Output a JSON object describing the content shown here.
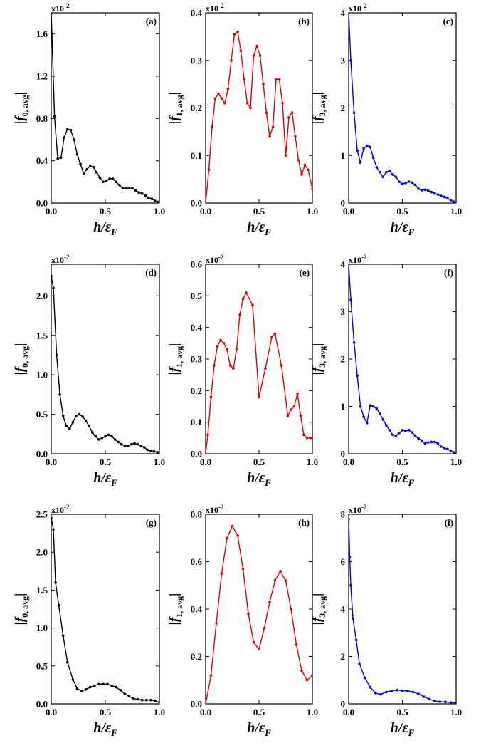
{
  "figure": {
    "xlabel_main": "h/ε",
    "xlabel_sub": "F",
    "scale_base": "x10",
    "scale_exp": "-2",
    "xticks": [
      "0.0",
      "0.5",
      "1.0"
    ]
  },
  "chart_data": [
    {
      "type": "line",
      "panel": "(a)",
      "color": "#000000",
      "ylabel_main": "|f",
      "ylabel_sub": "0, avg",
      "ylabel_end": "|",
      "xlim": [
        0,
        1
      ],
      "ylim": [
        0,
        1.8
      ],
      "yticks": [
        "0.0",
        "0.4",
        "0.8",
        "1.2",
        "1.6"
      ],
      "x": [
        0.0,
        0.03,
        0.06,
        0.09,
        0.12,
        0.15,
        0.18,
        0.21,
        0.24,
        0.27,
        0.3,
        0.33,
        0.36,
        0.39,
        0.42,
        0.45,
        0.48,
        0.51,
        0.54,
        0.57,
        0.6,
        0.63,
        0.66,
        0.69,
        0.72,
        0.75,
        0.78,
        0.81,
        0.84,
        0.87,
        0.9,
        0.93,
        0.96,
        0.99
      ],
      "y": [
        1.8,
        0.82,
        0.42,
        0.43,
        0.62,
        0.7,
        0.69,
        0.6,
        0.46,
        0.37,
        0.28,
        0.32,
        0.35,
        0.34,
        0.29,
        0.24,
        0.2,
        0.21,
        0.23,
        0.23,
        0.2,
        0.17,
        0.14,
        0.14,
        0.14,
        0.14,
        0.12,
        0.1,
        0.09,
        0.07,
        0.05,
        0.04,
        0.02,
        0.01
      ]
    },
    {
      "type": "line",
      "panel": "(b)",
      "color": "#e00000",
      "ylabel_main": "|f",
      "ylabel_sub": "1, avg",
      "ylabel_end": "|",
      "xlim": [
        0,
        1
      ],
      "ylim": [
        0,
        0.4
      ],
      "yticks": [
        "0.0",
        "0.1",
        "0.2",
        "0.3",
        "0.4"
      ],
      "x": [
        0.0,
        0.03,
        0.06,
        0.09,
        0.12,
        0.15,
        0.18,
        0.21,
        0.24,
        0.27,
        0.3,
        0.33,
        0.36,
        0.39,
        0.42,
        0.45,
        0.48,
        0.51,
        0.54,
        0.57,
        0.6,
        0.63,
        0.66,
        0.69,
        0.72,
        0.75,
        0.78,
        0.81,
        0.84,
        0.87,
        0.9,
        0.93,
        0.96,
        1.0
      ],
      "y": [
        0.0,
        0.07,
        0.16,
        0.22,
        0.23,
        0.22,
        0.21,
        0.24,
        0.3,
        0.355,
        0.36,
        0.32,
        0.26,
        0.21,
        0.2,
        0.31,
        0.33,
        0.31,
        0.25,
        0.19,
        0.14,
        0.16,
        0.26,
        0.26,
        0.21,
        0.1,
        0.18,
        0.19,
        0.14,
        0.09,
        0.06,
        0.08,
        0.07,
        0.03
      ]
    },
    {
      "type": "line",
      "panel": "(c)",
      "color": "#0000dd",
      "ylabel_main": "|f",
      "ylabel_sub": "3, avg",
      "ylabel_end": "|",
      "xlim": [
        0,
        1
      ],
      "ylim": [
        0,
        4
      ],
      "yticks": [
        "0",
        "1",
        "2",
        "3",
        "4"
      ],
      "x": [
        0.0,
        0.02,
        0.05,
        0.08,
        0.11,
        0.14,
        0.17,
        0.2,
        0.23,
        0.26,
        0.29,
        0.32,
        0.35,
        0.38,
        0.41,
        0.44,
        0.47,
        0.5,
        0.53,
        0.56,
        0.59,
        0.62,
        0.65,
        0.68,
        0.71,
        0.74,
        0.77,
        0.8,
        0.83,
        0.86,
        0.89,
        0.92,
        0.95,
        0.98,
        1.0
      ],
      "y": [
        4.0,
        3.0,
        1.9,
        1.1,
        0.85,
        1.15,
        1.2,
        1.18,
        0.95,
        0.75,
        0.65,
        0.55,
        0.65,
        0.68,
        0.6,
        0.55,
        0.45,
        0.4,
        0.42,
        0.45,
        0.43,
        0.38,
        0.3,
        0.27,
        0.28,
        0.26,
        0.23,
        0.2,
        0.18,
        0.15,
        0.13,
        0.1,
        0.06,
        0.03,
        0.01
      ]
    },
    {
      "type": "line",
      "panel": "(d)",
      "color": "#000000",
      "ylabel_main": "|f",
      "ylabel_sub": "0, avg",
      "ylabel_end": "|",
      "xlim": [
        0,
        1
      ],
      "ylim": [
        0,
        2.4
      ],
      "yticks": [
        "0.0",
        "0.5",
        "1.0",
        "1.5",
        "2.0"
      ],
      "x": [
        0.0,
        0.02,
        0.05,
        0.08,
        0.11,
        0.14,
        0.17,
        0.2,
        0.23,
        0.26,
        0.29,
        0.32,
        0.35,
        0.38,
        0.41,
        0.44,
        0.47,
        0.5,
        0.53,
        0.56,
        0.59,
        0.62,
        0.65,
        0.68,
        0.71,
        0.74,
        0.77,
        0.8,
        0.83,
        0.86,
        0.89,
        0.92,
        0.95,
        0.98,
        1.0
      ],
      "y": [
        2.25,
        2.1,
        1.25,
        0.75,
        0.48,
        0.35,
        0.32,
        0.4,
        0.48,
        0.5,
        0.47,
        0.42,
        0.35,
        0.27,
        0.22,
        0.18,
        0.2,
        0.22,
        0.24,
        0.22,
        0.18,
        0.15,
        0.12,
        0.1,
        0.1,
        0.12,
        0.13,
        0.12,
        0.1,
        0.08,
        0.05,
        0.04,
        0.03,
        0.02,
        0.01
      ]
    },
    {
      "type": "line",
      "panel": "(e)",
      "color": "#e00000",
      "ylabel_main": "|f",
      "ylabel_sub": "1, avg",
      "ylabel_end": "|",
      "xlim": [
        0,
        1
      ],
      "ylim": [
        0,
        0.6
      ],
      "yticks": [
        "0.0",
        "0.1",
        "0.2",
        "0.3",
        "0.4",
        "0.5",
        "0.6"
      ],
      "x": [
        0.0,
        0.02,
        0.05,
        0.08,
        0.11,
        0.14,
        0.17,
        0.2,
        0.23,
        0.26,
        0.29,
        0.32,
        0.35,
        0.38,
        0.44,
        0.5,
        0.56,
        0.62,
        0.65,
        0.71,
        0.77,
        0.8,
        0.83,
        0.86,
        0.89,
        0.92,
        0.95,
        0.98,
        1.0
      ],
      "y": [
        0.0,
        0.06,
        0.18,
        0.28,
        0.34,
        0.36,
        0.35,
        0.33,
        0.28,
        0.27,
        0.33,
        0.44,
        0.49,
        0.51,
        0.47,
        0.18,
        0.27,
        0.37,
        0.38,
        0.28,
        0.12,
        0.14,
        0.15,
        0.19,
        0.12,
        0.06,
        0.05,
        0.05,
        0.05
      ]
    },
    {
      "type": "line",
      "panel": "(f)",
      "color": "#0000dd",
      "ylabel_main": "|f",
      "ylabel_sub": "3, avg",
      "ylabel_end": "|",
      "xlim": [
        0,
        1
      ],
      "ylim": [
        0,
        4
      ],
      "yticks": [
        "0",
        "1",
        "2",
        "3",
        "4"
      ],
      "x": [
        0.0,
        0.02,
        0.05,
        0.08,
        0.11,
        0.14,
        0.17,
        0.2,
        0.23,
        0.26,
        0.29,
        0.32,
        0.35,
        0.38,
        0.41,
        0.44,
        0.47,
        0.5,
        0.53,
        0.56,
        0.59,
        0.62,
        0.65,
        0.68,
        0.71,
        0.74,
        0.77,
        0.8,
        0.83,
        0.86,
        0.89,
        0.92,
        0.95,
        0.98,
        1.0
      ],
      "y": [
        4.2,
        3.25,
        2.35,
        1.65,
        1.0,
        0.78,
        0.65,
        1.02,
        1.0,
        0.95,
        0.85,
        0.72,
        0.6,
        0.5,
        0.4,
        0.38,
        0.44,
        0.5,
        0.48,
        0.5,
        0.45,
        0.38,
        0.32,
        0.28,
        0.22,
        0.24,
        0.25,
        0.25,
        0.22,
        0.15,
        0.12,
        0.1,
        0.06,
        0.03,
        0.01
      ]
    },
    {
      "type": "line",
      "panel": "(g)",
      "color": "#000000",
      "ylabel_main": "|f",
      "ylabel_sub": "0, avg",
      "ylabel_end": "|",
      "xlim": [
        0,
        1
      ],
      "ylim": [
        0,
        2.5
      ],
      "yticks": [
        "0.0",
        "0.5",
        "1.0",
        "1.5",
        "2.0",
        "2.5"
      ],
      "x": [
        0.0,
        0.02,
        0.04,
        0.07,
        0.11,
        0.15,
        0.2,
        0.24,
        0.28,
        0.32,
        0.36,
        0.4,
        0.44,
        0.48,
        0.52,
        0.56,
        0.6,
        0.64,
        0.68,
        0.72,
        0.76,
        0.8,
        0.84,
        0.88,
        0.92,
        0.96,
        1.0
      ],
      "y": [
        2.45,
        2.3,
        1.6,
        1.3,
        0.9,
        0.55,
        0.32,
        0.2,
        0.17,
        0.19,
        0.22,
        0.24,
        0.26,
        0.26,
        0.26,
        0.24,
        0.22,
        0.18,
        0.13,
        0.1,
        0.07,
        0.06,
        0.05,
        0.05,
        0.05,
        0.04,
        0.02
      ]
    },
    {
      "type": "line",
      "panel": "(h)",
      "color": "#e00000",
      "ylabel_main": "|f",
      "ylabel_sub": "1, avg",
      "ylabel_end": "|",
      "xlim": [
        0,
        1
      ],
      "ylim": [
        0,
        0.8
      ],
      "yticks": [
        "0.0",
        "0.2",
        "0.4",
        "0.6",
        "0.8"
      ],
      "x": [
        0.0,
        0.05,
        0.1,
        0.15,
        0.2,
        0.25,
        0.3,
        0.35,
        0.4,
        0.45,
        0.5,
        0.55,
        0.6,
        0.65,
        0.7,
        0.75,
        0.8,
        0.85,
        0.9,
        0.95,
        1.0
      ],
      "y": [
        0.0,
        0.12,
        0.34,
        0.55,
        0.7,
        0.75,
        0.71,
        0.57,
        0.38,
        0.26,
        0.23,
        0.32,
        0.43,
        0.52,
        0.56,
        0.52,
        0.4,
        0.25,
        0.14,
        0.1,
        0.12
      ]
    },
    {
      "type": "line",
      "panel": "(i)",
      "color": "#0000dd",
      "ylabel_main": "|f",
      "ylabel_sub": "3, avg",
      "ylabel_end": "|",
      "xlim": [
        0,
        1
      ],
      "ylim": [
        0,
        8
      ],
      "yticks": [
        "0",
        "2",
        "4",
        "6",
        "8"
      ],
      "x": [
        0.0,
        0.01,
        0.02,
        0.04,
        0.07,
        0.1,
        0.15,
        0.2,
        0.25,
        0.3,
        0.35,
        0.4,
        0.45,
        0.5,
        0.55,
        0.6,
        0.65,
        0.7,
        0.75,
        0.8,
        0.85,
        0.9,
        0.95,
        1.0
      ],
      "y": [
        7.8,
        6.2,
        5.0,
        3.6,
        2.7,
        1.7,
        1.1,
        0.7,
        0.45,
        0.4,
        0.5,
        0.55,
        0.58,
        0.56,
        0.54,
        0.5,
        0.42,
        0.3,
        0.2,
        0.12,
        0.09,
        0.08,
        0.06,
        0.03
      ]
    }
  ]
}
